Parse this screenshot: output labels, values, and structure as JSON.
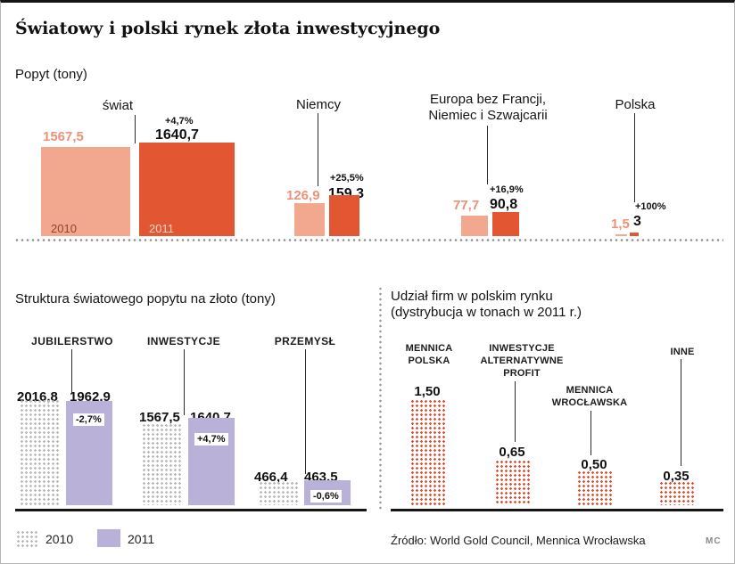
{
  "title": "Światowy i polski rynek złota inwestycyjnego",
  "colors": {
    "bar_2010_top": "#f2a78f",
    "bar_2011_top": "#e25732",
    "bar_2011_structure": "#b9b1d8",
    "dots_gray": "#b9b9b9",
    "dots_orange": "#dd4f2e"
  },
  "legend": {
    "items": [
      {
        "label": "2010"
      },
      {
        "label": "2011"
      }
    ]
  },
  "source": "Źródło: World Gold Council, Mennica Wrocławska",
  "credit": "MC",
  "chart_data": [
    {
      "id": "popyt",
      "type": "bar",
      "title": "Popyt (tony)",
      "ylabel": "tony",
      "series": [
        "2010",
        "2011"
      ],
      "groups": [
        {
          "line1": "świat",
          "values": [
            1567.5,
            1640.7
          ],
          "value_labels": [
            "1567,5",
            "1640,7"
          ],
          "change": "+4,7%"
        },
        {
          "line1": "Niemcy",
          "values": [
            126.9,
            159.3
          ],
          "value_labels": [
            "126,9",
            "159,3"
          ],
          "change": "+25,5%"
        },
        {
          "line1": "Europa bez Francji,",
          "line2": "Niemiec i Szwajcarii",
          "values": [
            77.7,
            90.8
          ],
          "value_labels": [
            "77,7",
            "90,8"
          ],
          "change": "+16,9%"
        },
        {
          "line1": "Polska",
          "values": [
            1.5,
            3
          ],
          "value_labels": [
            "1,5",
            "3"
          ],
          "change": "+100%"
        }
      ]
    },
    {
      "id": "struktura",
      "type": "bar",
      "title": "Struktura światowego popytu na złoto (tony)",
      "series": [
        "2010",
        "2011"
      ],
      "groups": [
        {
          "label": "JUBILERSTWO",
          "values": [
            2016.8,
            1962.9
          ],
          "value_labels": [
            "2016,8",
            "1962,9"
          ],
          "change": "-2,7%"
        },
        {
          "label": "INWESTYCJE",
          "values": [
            1567.5,
            1640.7
          ],
          "value_labels": [
            "1567,5",
            "1640,7"
          ],
          "change": "+4,7%"
        },
        {
          "label": "PRZEMYSŁ",
          "values": [
            466.4,
            463.5
          ],
          "value_labels": [
            "466,4",
            "463,5"
          ],
          "change": "-0,6%"
        }
      ]
    },
    {
      "id": "udzial-firm",
      "type": "bar",
      "title_line1": "Udział firm w polskim rynku",
      "title_line2": "(dystrybucja w tonach w 2011 r.)",
      "year": "2011",
      "groups": [
        {
          "line1": "MENNICA",
          "line2": "POLSKA",
          "value": 1.5,
          "value_label": "1,50"
        },
        {
          "line1": "INWESTYCJE",
          "line2": "ALTERNATYWNE",
          "line3": "PROFIT",
          "value": 0.65,
          "value_label": "0,65"
        },
        {
          "line1": "MENNICA",
          "line2": "WROCŁAWSKA",
          "value": 0.5,
          "value_label": "0,50"
        },
        {
          "line1": "INNE",
          "value": 0.35,
          "value_label": "0,35"
        }
      ]
    }
  ]
}
